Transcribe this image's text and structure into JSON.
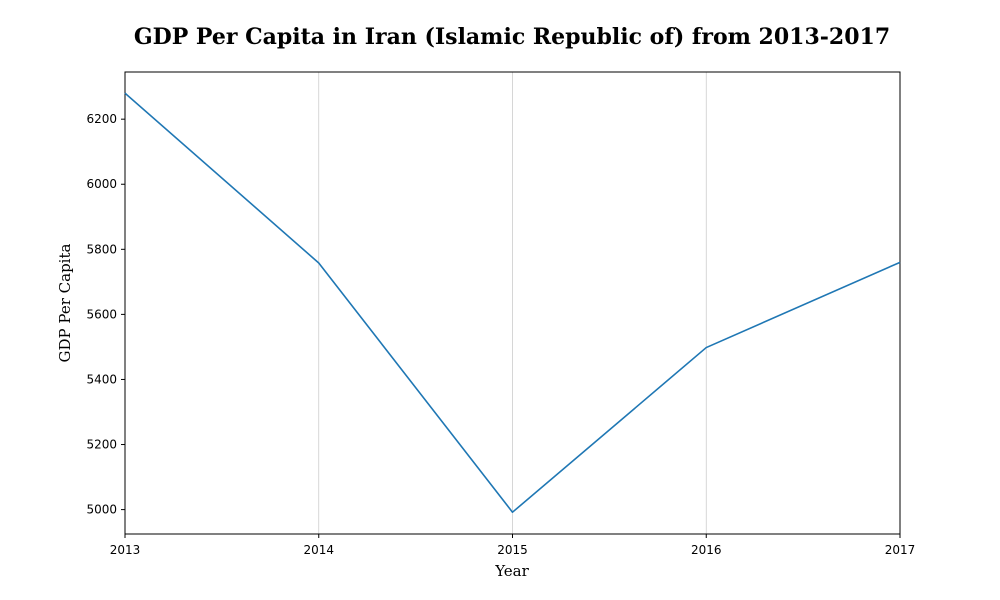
{
  "chart_data": {
    "type": "line",
    "title": "GDP Per Capita in Iran (Islamic Republic of) from 2013-2017",
    "xlabel": "Year",
    "ylabel": "GDP Per Capita",
    "x": [
      2013,
      2014,
      2015,
      2016,
      2017
    ],
    "series": [
      {
        "values": [
          6280,
          5758,
          4992,
          5498,
          5760
        ]
      }
    ],
    "xlim": [
      2013,
      2017
    ],
    "ylim": [
      4925,
      6345
    ],
    "x_ticks": [
      "2013",
      "2014",
      "2015",
      "2016",
      "2017"
    ],
    "y_ticks": [
      "5000",
      "5200",
      "5400",
      "5600",
      "5800",
      "6000",
      "6200"
    ],
    "grid": "vertical",
    "line_color": "#1f77b4",
    "grid_color": "#cccccc"
  }
}
